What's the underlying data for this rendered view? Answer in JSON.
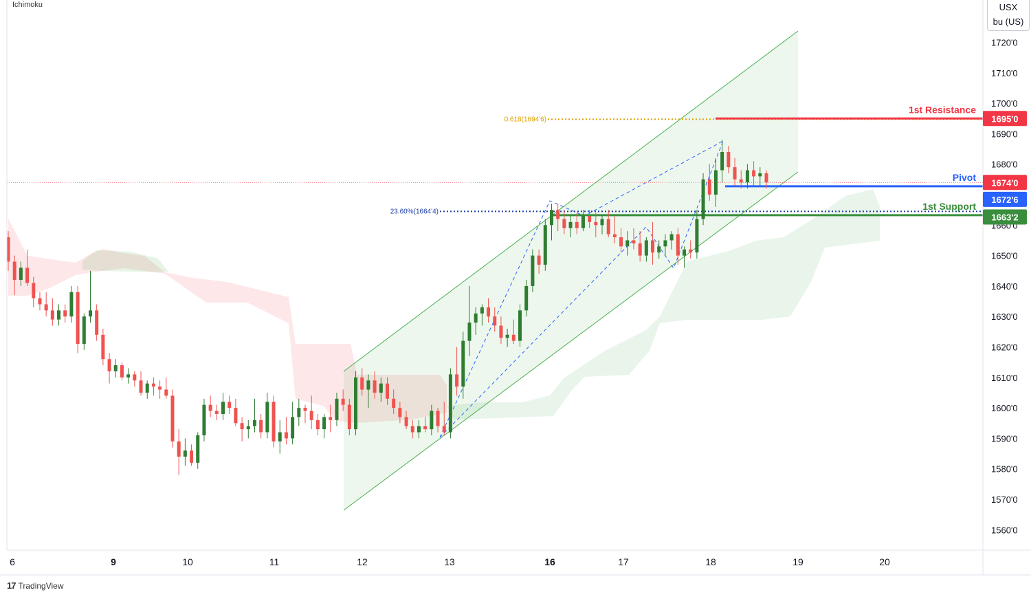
{
  "indicator_label": "Ichimoku",
  "unit": {
    "line1": "USX",
    "line2": "bu (US)"
  },
  "footer": {
    "brand": "TradingView"
  },
  "chart_data": {
    "type": "candlestick",
    "y_tick_labels": [
      "1720'0",
      "1710'0",
      "1700'0",
      "1690'0",
      "1680'0",
      "1670'0",
      "1660'0",
      "1650'0",
      "1640'0",
      "1630'0",
      "1620'0",
      "1610'0",
      "1600'0",
      "1590'0",
      "1580'0",
      "1570'0",
      "1560'0"
    ],
    "y_tick_values": [
      1720,
      1710,
      1700,
      1690,
      1680,
      1670,
      1660,
      1650,
      1640,
      1630,
      1620,
      1610,
      1600,
      1590,
      1580,
      1570,
      1560
    ],
    "x_tick_labels": [
      "6",
      "9",
      "10",
      "11",
      "12",
      "13",
      "16",
      "17",
      "18",
      "19",
      "20"
    ],
    "x_tick_bold": [
      "9",
      "16"
    ],
    "y_range": [
      1553,
      1732
    ],
    "levels": [
      {
        "name": "1st Resistance",
        "value": 1695.0,
        "tag": "1695'0",
        "color": "#f23645"
      },
      {
        "name": "Pivot",
        "value": 1672.75,
        "tag": "1672'6",
        "color": "#2962ff"
      },
      {
        "name": "1st Support",
        "value": 1663.25,
        "tag": "1663'2",
        "color": "#388e3c"
      }
    ],
    "last_price": {
      "value": 1674.0,
      "tag": "1674'0",
      "color": "#f23645"
    },
    "fib_levels": [
      {
        "label": "0.618(1694'6)",
        "value": 1694.75,
        "color": "#e0a100"
      },
      {
        "label": "23.60%(1664'4)",
        "value": 1664.5,
        "color": "#1e3fa8"
      }
    ],
    "candles_ohlc": [
      [
        1656,
        1658,
        1645,
        1648
      ],
      [
        1648,
        1650,
        1637,
        1642
      ],
      [
        1642,
        1648,
        1640,
        1646
      ],
      [
        1646,
        1652,
        1640,
        1641
      ],
      [
        1641,
        1643,
        1633,
        1636
      ],
      [
        1636,
        1638,
        1632,
        1634
      ],
      [
        1634,
        1638,
        1630,
        1632
      ],
      [
        1632,
        1636,
        1627,
        1629
      ],
      [
        1629,
        1634,
        1627,
        1632
      ],
      [
        1632,
        1634,
        1628,
        1630
      ],
      [
        1630,
        1640,
        1628,
        1638
      ],
      [
        1638,
        1640,
        1618,
        1621
      ],
      [
        1621,
        1631,
        1619,
        1630
      ],
      [
        1630,
        1645,
        1628,
        1632
      ],
      [
        1632,
        1634,
        1622,
        1624
      ],
      [
        1624,
        1626,
        1614,
        1616
      ],
      [
        1616,
        1618,
        1608,
        1612
      ],
      [
        1612,
        1616,
        1610,
        1614
      ],
      [
        1614,
        1615,
        1609,
        1610
      ],
      [
        1610,
        1613,
        1608,
        1611
      ],
      [
        1611,
        1612,
        1607,
        1609
      ],
      [
        1609,
        1612,
        1604,
        1605
      ],
      [
        1605,
        1609,
        1603,
        1608
      ],
      [
        1608,
        1610,
        1604,
        1607
      ],
      [
        1607,
        1609,
        1603,
        1606
      ],
      [
        1606,
        1610,
        1603,
        1604
      ],
      [
        1604,
        1606,
        1587,
        1589
      ],
      [
        1589,
        1593,
        1578,
        1584
      ],
      [
        1584,
        1590,
        1581,
        1586
      ],
      [
        1586,
        1588,
        1581,
        1582
      ],
      [
        1582,
        1592,
        1580,
        1591
      ],
      [
        1591,
        1603,
        1589,
        1601
      ],
      [
        1601,
        1604,
        1597,
        1599
      ],
      [
        1599,
        1601,
        1596,
        1598
      ],
      [
        1598,
        1605,
        1596,
        1602
      ],
      [
        1602,
        1604,
        1598,
        1600
      ],
      [
        1600,
        1603,
        1594,
        1595
      ],
      [
        1595,
        1597,
        1589,
        1593
      ],
      [
        1593,
        1596,
        1590,
        1594
      ],
      [
        1594,
        1603,
        1592,
        1596
      ],
      [
        1596,
        1598,
        1590,
        1592
      ],
      [
        1592,
        1605,
        1590,
        1602
      ],
      [
        1602,
        1604,
        1587,
        1589
      ],
      [
        1589,
        1596,
        1585,
        1592
      ],
      [
        1592,
        1597,
        1588,
        1590
      ],
      [
        1590,
        1602,
        1588,
        1597
      ],
      [
        1597,
        1603,
        1594,
        1600
      ],
      [
        1600,
        1601,
        1595,
        1599
      ],
      [
        1599,
        1604,
        1593,
        1596
      ],
      [
        1596,
        1598,
        1591,
        1593
      ],
      [
        1593,
        1598,
        1590,
        1597
      ],
      [
        1597,
        1601,
        1592,
        1596
      ],
      [
        1596,
        1605,
        1594,
        1603
      ],
      [
        1603,
        1606,
        1599,
        1601
      ],
      [
        1601,
        1603,
        1591,
        1593
      ],
      [
        1593,
        1612,
        1591,
        1610
      ],
      [
        1610,
        1613,
        1604,
        1606
      ],
      [
        1606,
        1611,
        1600,
        1609
      ],
      [
        1609,
        1612,
        1603,
        1605
      ],
      [
        1605,
        1610,
        1602,
        1608
      ],
      [
        1608,
        1610,
        1601,
        1603
      ],
      [
        1603,
        1606,
        1598,
        1600
      ],
      [
        1600,
        1602,
        1595,
        1597
      ],
      [
        1597,
        1599,
        1593,
        1594
      ],
      [
        1594,
        1596,
        1590,
        1592
      ],
      [
        1592,
        1596,
        1590,
        1594
      ],
      [
        1594,
        1597,
        1592,
        1593
      ],
      [
        1593,
        1601,
        1591,
        1599
      ],
      [
        1599,
        1600,
        1592,
        1594
      ],
      [
        1594,
        1602,
        1591,
        1592
      ],
      [
        1592,
        1613,
        1590,
        1611
      ],
      [
        1611,
        1620,
        1604,
        1607
      ],
      [
        1607,
        1625,
        1603,
        1622
      ],
      [
        1622,
        1640,
        1617,
        1628
      ],
      [
        1628,
        1633,
        1624,
        1631
      ],
      [
        1631,
        1634,
        1627,
        1633
      ],
      [
        1633,
        1636,
        1628,
        1630
      ],
      [
        1630,
        1633,
        1625,
        1627
      ],
      [
        1627,
        1630,
        1621,
        1623
      ],
      [
        1623,
        1626,
        1620,
        1624
      ],
      [
        1624,
        1629,
        1621,
        1622
      ],
      [
        1622,
        1634,
        1620,
        1632
      ],
      [
        1632,
        1642,
        1630,
        1640
      ],
      [
        1640,
        1652,
        1638,
        1650
      ],
      [
        1650,
        1652,
        1644,
        1647
      ],
      [
        1647,
        1662,
        1645,
        1660
      ],
      [
        1660,
        1667,
        1655,
        1665
      ],
      [
        1665,
        1667,
        1658,
        1662
      ],
      [
        1662,
        1665,
        1657,
        1659
      ],
      [
        1659,
        1663,
        1656,
        1661
      ],
      [
        1661,
        1664,
        1657,
        1659
      ],
      [
        1659,
        1665,
        1658,
        1663
      ],
      [
        1663,
        1665,
        1659,
        1661
      ],
      [
        1661,
        1664,
        1656,
        1660
      ],
      [
        1660,
        1663,
        1657,
        1662
      ],
      [
        1662,
        1665,
        1656,
        1657
      ],
      [
        1657,
        1663,
        1654,
        1656
      ],
      [
        1656,
        1659,
        1651,
        1653
      ],
      [
        1653,
        1658,
        1650,
        1655
      ],
      [
        1655,
        1659,
        1652,
        1654
      ],
      [
        1654,
        1658,
        1648,
        1650
      ],
      [
        1650,
        1656,
        1648,
        1655
      ],
      [
        1655,
        1661,
        1647,
        1651
      ],
      [
        1651,
        1655,
        1649,
        1653
      ],
      [
        1653,
        1657,
        1650,
        1655
      ],
      [
        1655,
        1658,
        1652,
        1657
      ],
      [
        1657,
        1659,
        1647,
        1650
      ],
      [
        1650,
        1653,
        1646,
        1652
      ],
      [
        1652,
        1655,
        1649,
        1651
      ],
      [
        1651,
        1665,
        1649,
        1662
      ],
      [
        1662,
        1677,
        1660,
        1675
      ],
      [
        1675,
        1680,
        1668,
        1670
      ],
      [
        1670,
        1682,
        1666,
        1678
      ],
      [
        1678,
        1688,
        1674,
        1684
      ],
      [
        1684,
        1686,
        1677,
        1679
      ],
      [
        1679,
        1682,
        1673,
        1675
      ],
      [
        1675,
        1678,
        1672,
        1674
      ],
      [
        1674,
        1680,
        1672,
        1678
      ],
      [
        1678,
        1681,
        1673,
        1676
      ],
      [
        1676,
        1679,
        1673,
        1677
      ],
      [
        1677,
        1678,
        1672,
        1674
      ]
    ]
  }
}
